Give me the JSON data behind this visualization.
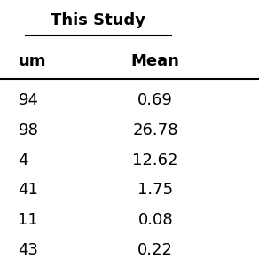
{
  "title": "This Study",
  "col_headers": [
    "um",
    "Mean"
  ],
  "rows": [
    [
      "94",
      "0.69"
    ],
    [
      "98",
      "26.78"
    ],
    [
      "4",
      "12.62"
    ],
    [
      "41",
      "1.75"
    ],
    [
      "11",
      "0.08"
    ],
    [
      "43",
      "0.22"
    ]
  ],
  "bg_color": "#ffffff",
  "text_color": "#000000",
  "title_fontsize": 13,
  "header_fontsize": 13,
  "data_fontsize": 13
}
